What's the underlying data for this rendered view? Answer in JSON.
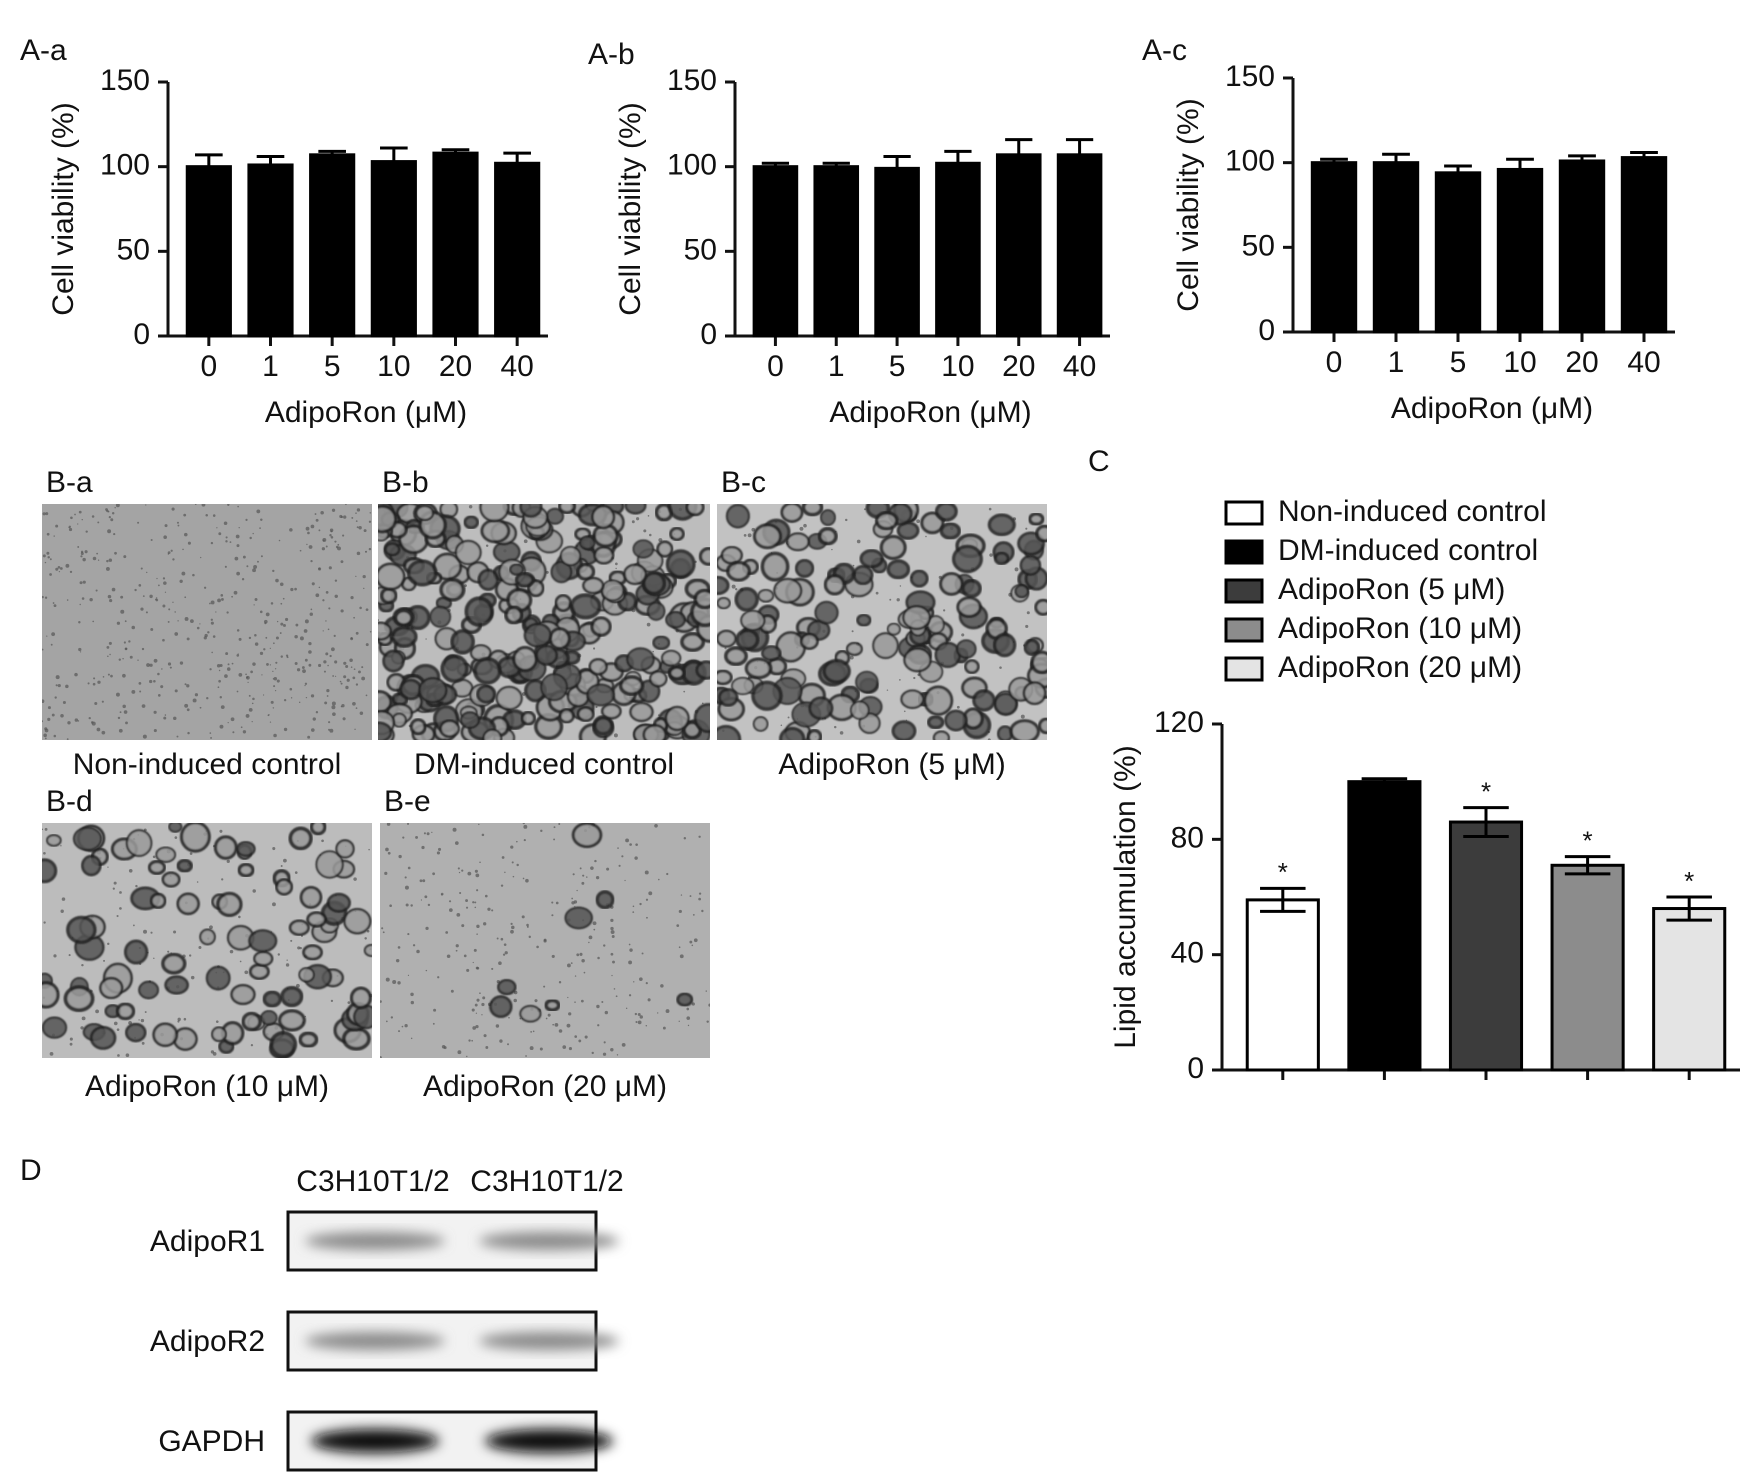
{
  "chart_data": [
    {
      "type": "bar",
      "title": "A-a",
      "x_label": "AdipoRon (μM)",
      "y_label": "Cell viability (%)",
      "categories": [
        "0",
        "1",
        "5",
        "10",
        "20",
        "40"
      ],
      "values": [
        100,
        101,
        107,
        103,
        108,
        102
      ],
      "errors": [
        7,
        5,
        2,
        8,
        2,
        6
      ],
      "color": "#000000",
      "ylim": [
        0,
        150
      ],
      "yticks": [
        0,
        50,
        100,
        150
      ]
    },
    {
      "type": "bar",
      "title": "A-b",
      "x_label": "AdipoRon (μM)",
      "y_label": "Cell viability (%)",
      "categories": [
        "0",
        "1",
        "5",
        "10",
        "20",
        "40"
      ],
      "values": [
        100,
        100,
        99,
        102,
        107,
        107
      ],
      "errors": [
        2,
        2,
        7,
        7,
        9,
        9
      ],
      "color": "#000000",
      "ylim": [
        0,
        150
      ],
      "yticks": [
        0,
        50,
        100,
        150
      ]
    },
    {
      "type": "bar",
      "title": "A-c",
      "x_label": "AdipoRon (μM)",
      "y_label": "Cell viability (%)",
      "categories": [
        "0",
        "1",
        "5",
        "10",
        "20",
        "40"
      ],
      "values": [
        100,
        100,
        94,
        96,
        101,
        103
      ],
      "errors": [
        2,
        5,
        4,
        6,
        3,
        3
      ],
      "color": "#000000",
      "ylim": [
        0,
        150
      ],
      "yticks": [
        0,
        50,
        100,
        150
      ]
    },
    {
      "type": "bar",
      "title": "C",
      "y_label": "Lipid accumulation (%)",
      "categories": [
        "Non-induced control",
        "DM-induced control",
        "AdipoRon (5 μM)",
        "AdipoRon (10 μM)",
        "AdipoRon (20 μM)"
      ],
      "values": [
        59,
        100,
        86,
        71,
        56
      ],
      "errors": [
        4,
        1,
        5,
        3,
        4
      ],
      "colors": [
        "#ffffff",
        "#000000",
        "#3c3c3c",
        "#8c8c8c",
        "#e4e4e4"
      ],
      "significance": [
        "*",
        null,
        "*",
        "*",
        "*"
      ],
      "ylim": [
        0,
        120
      ],
      "yticks": [
        0,
        40,
        80,
        120
      ],
      "legend": "top"
    }
  ],
  "micrographs": [
    {
      "label": "B-a",
      "caption": "Non-induced control"
    },
    {
      "label": "B-b",
      "caption": "DM-induced control"
    },
    {
      "label": "B-c",
      "caption": "AdipoRon (5 μM)"
    },
    {
      "label": "B-d",
      "caption": "AdipoRon (10 μM)"
    },
    {
      "label": "B-e",
      "caption": "AdipoRon (20 μM)"
    }
  ],
  "blot": {
    "label": "D",
    "lanes": [
      "C3H10T1/2",
      "C3H10T1/2"
    ],
    "rows": [
      "AdipoR1",
      "AdipoR2",
      "GAPDH"
    ]
  }
}
